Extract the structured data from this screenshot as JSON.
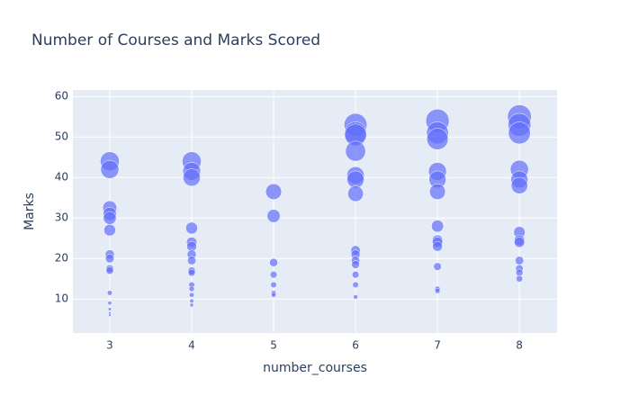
{
  "chart_data": {
    "type": "scatter",
    "title": "Number of Courses and Marks Scored",
    "x_label": "number_courses",
    "y_label": "Marks",
    "x": [
      3,
      3,
      3,
      3,
      3,
      3,
      3,
      3,
      3,
      3,
      3,
      3,
      3,
      3,
      3,
      4,
      4,
      4,
      4,
      4,
      4,
      4,
      4,
      4,
      4,
      4,
      4,
      4,
      4,
      4,
      5,
      5,
      5,
      5,
      5,
      5,
      5,
      6,
      6,
      6,
      6,
      6,
      6,
      6,
      6,
      6,
      6,
      6,
      6,
      6,
      6,
      7,
      7,
      7,
      7,
      7,
      7,
      7,
      7,
      7,
      7,
      7,
      7,
      7,
      8,
      8,
      8,
      8,
      8,
      8,
      8,
      8,
      8,
      8,
      8,
      8,
      8
    ],
    "values": [
      44,
      42,
      32.5,
      31,
      30,
      27,
      21,
      20,
      17.5,
      17,
      11.5,
      9,
      7.5,
      6.5,
      6,
      44,
      41.5,
      40,
      27.5,
      24,
      23,
      21,
      19.5,
      17,
      16.5,
      13.5,
      12.5,
      11,
      9.5,
      8.5,
      36.5,
      30.5,
      19,
      16,
      13.5,
      11.5,
      11,
      53,
      51,
      50.5,
      46.5,
      40.5,
      39.5,
      36,
      22,
      21,
      19.5,
      18.5,
      16,
      13.5,
      10.5,
      54,
      51,
      49.5,
      41.5,
      39.5,
      36.5,
      28,
      24.5,
      24,
      23,
      18,
      12.5,
      12,
      55,
      53,
      51,
      42,
      39.5,
      38,
      26.5,
      24.5,
      24,
      19.5,
      17.5,
      16.5,
      15
    ],
    "sizes": [
      44,
      42,
      32.5,
      31,
      30,
      27,
      21,
      20,
      17.5,
      17,
      11.5,
      9,
      7.5,
      6.5,
      6,
      44,
      41.5,
      40,
      27.5,
      24,
      23,
      21,
      19.5,
      17,
      16.5,
      13.5,
      12.5,
      11,
      9.5,
      8.5,
      36.5,
      30.5,
      19,
      16,
      13.5,
      11.5,
      11,
      53,
      51,
      50.5,
      46.5,
      40.5,
      39.5,
      36,
      22,
      21,
      19.5,
      18.5,
      16,
      13.5,
      10.5,
      54,
      51,
      49.5,
      41.5,
      39.5,
      36.5,
      28,
      24.5,
      24,
      23,
      18,
      12.5,
      12,
      55,
      53,
      51,
      42,
      39.5,
      38,
      26.5,
      24.5,
      24,
      19.5,
      17.5,
      16.5,
      15
    ],
    "color": "#636efa",
    "xlim": [
      2.55,
      8.46
    ],
    "ylim": [
      1.6,
      61.6
    ],
    "xticks": [
      3,
      4,
      5,
      6,
      7,
      8
    ],
    "yticks": [
      10,
      20,
      30,
      40,
      50,
      60
    ],
    "grid": true
  }
}
